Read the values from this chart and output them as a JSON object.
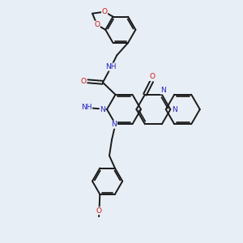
{
  "bg": "#e8eef5",
  "bc": "#1a1a1a",
  "Nc": "#2222bb",
  "Oc": "#cc1111",
  "lw": 1.4,
  "fs": 6.5,
  "figsize": [
    3.0,
    3.0
  ],
  "dpi": 100,
  "xlim": [
    0,
    10
  ],
  "ylim": [
    0,
    10
  ]
}
